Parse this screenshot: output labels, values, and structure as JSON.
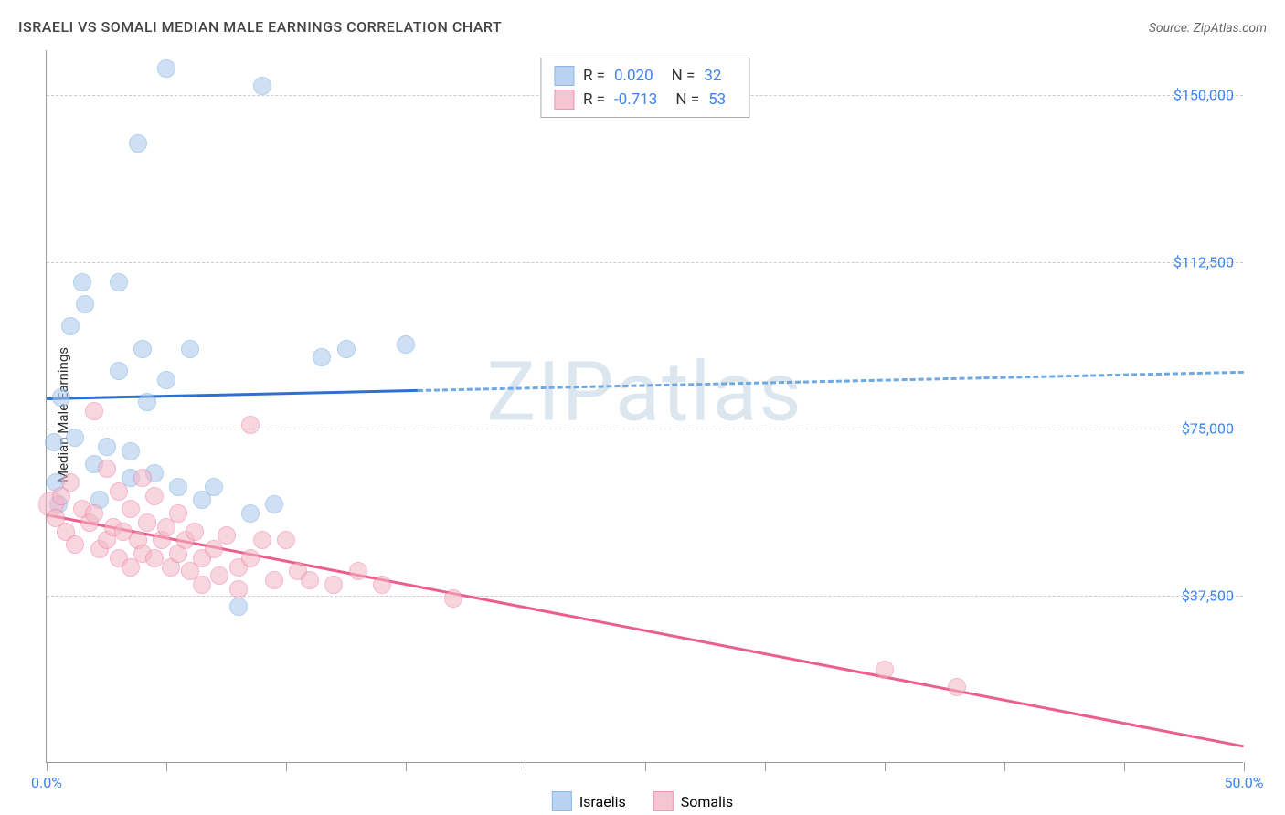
{
  "title": "ISRAELI VS SOMALI MEDIAN MALE EARNINGS CORRELATION CHART",
  "source": "Source: ZipAtlas.com",
  "y_axis_label": "Median Male Earnings",
  "watermark": "ZIPatlas",
  "x_axis": {
    "min": 0.0,
    "max": 50.0,
    "ticks": [
      0,
      5,
      10,
      15,
      20,
      25,
      30,
      35,
      40,
      45,
      50
    ],
    "labels": {
      "0": "0.0%",
      "50": "50.0%"
    }
  },
  "y_axis": {
    "min": 0,
    "max": 160000,
    "gridlines": [
      37500,
      75000,
      112500,
      150000
    ],
    "labels": {
      "37500": "$37,500",
      "75000": "$75,000",
      "112500": "$112,500",
      "150000": "$150,000"
    }
  },
  "series": [
    {
      "name": "Israelis",
      "fill_color": "#a9c8ec",
      "stroke_color": "#6fa8e2",
      "fill_opacity": 0.55,
      "marker_radius": 10,
      "R": "0.020",
      "N": "32",
      "trend": {
        "y_at_xmin": 82000,
        "y_at_xmax": 88000,
        "solid_until_x": 15.5,
        "solid_color": "#2f6fd0",
        "dash_color": "#6fa8e2",
        "width": 3
      },
      "points": [
        {
          "x": 0.3,
          "y": 72000
        },
        {
          "x": 0.4,
          "y": 63000
        },
        {
          "x": 0.5,
          "y": 58000
        },
        {
          "x": 0.6,
          "y": 82000
        },
        {
          "x": 1.0,
          "y": 98000
        },
        {
          "x": 1.2,
          "y": 73000
        },
        {
          "x": 1.5,
          "y": 108000
        },
        {
          "x": 1.6,
          "y": 103000
        },
        {
          "x": 2.0,
          "y": 67000
        },
        {
          "x": 2.2,
          "y": 59000
        },
        {
          "x": 2.5,
          "y": 71000
        },
        {
          "x": 3.0,
          "y": 108000
        },
        {
          "x": 3.0,
          "y": 88000
        },
        {
          "x": 3.5,
          "y": 70000
        },
        {
          "x": 3.5,
          "y": 64000
        },
        {
          "x": 3.8,
          "y": 139000
        },
        {
          "x": 4.0,
          "y": 93000
        },
        {
          "x": 4.2,
          "y": 81000
        },
        {
          "x": 4.5,
          "y": 65000
        },
        {
          "x": 5.0,
          "y": 156000
        },
        {
          "x": 5.0,
          "y": 86000
        },
        {
          "x": 5.5,
          "y": 62000
        },
        {
          "x": 6.0,
          "y": 93000
        },
        {
          "x": 6.5,
          "y": 59000
        },
        {
          "x": 7.0,
          "y": 62000
        },
        {
          "x": 8.0,
          "y": 35000
        },
        {
          "x": 8.5,
          "y": 56000
        },
        {
          "x": 9.0,
          "y": 152000
        },
        {
          "x": 9.5,
          "y": 58000
        },
        {
          "x": 11.5,
          "y": 91000
        },
        {
          "x": 12.5,
          "y": 93000
        },
        {
          "x": 15.0,
          "y": 94000
        }
      ]
    },
    {
      "name": "Somalis",
      "fill_color": "#f4b6c7",
      "stroke_color": "#ec7ba0",
      "fill_opacity": 0.55,
      "marker_radius": 10,
      "R": "-0.713",
      "N": "53",
      "trend": {
        "y_at_xmin": 56000,
        "y_at_xmax": 4000,
        "solid_until_x": 50,
        "solid_color": "#ec5f8d",
        "dash_color": "#ec5f8d",
        "width": 3
      },
      "points": [
        {
          "x": 0.2,
          "y": 58000,
          "r": 14
        },
        {
          "x": 0.4,
          "y": 55000
        },
        {
          "x": 0.6,
          "y": 60000
        },
        {
          "x": 0.8,
          "y": 52000
        },
        {
          "x": 1.0,
          "y": 63000
        },
        {
          "x": 1.2,
          "y": 49000
        },
        {
          "x": 1.5,
          "y": 57000
        },
        {
          "x": 1.8,
          "y": 54000
        },
        {
          "x": 2.0,
          "y": 79000
        },
        {
          "x": 2.0,
          "y": 56000
        },
        {
          "x": 2.2,
          "y": 48000
        },
        {
          "x": 2.5,
          "y": 66000
        },
        {
          "x": 2.5,
          "y": 50000
        },
        {
          "x": 2.8,
          "y": 53000
        },
        {
          "x": 3.0,
          "y": 61000
        },
        {
          "x": 3.0,
          "y": 46000
        },
        {
          "x": 3.2,
          "y": 52000
        },
        {
          "x": 3.5,
          "y": 57000
        },
        {
          "x": 3.5,
          "y": 44000
        },
        {
          "x": 3.8,
          "y": 50000
        },
        {
          "x": 4.0,
          "y": 64000
        },
        {
          "x": 4.0,
          "y": 47000
        },
        {
          "x": 4.2,
          "y": 54000
        },
        {
          "x": 4.5,
          "y": 60000
        },
        {
          "x": 4.5,
          "y": 46000
        },
        {
          "x": 4.8,
          "y": 50000
        },
        {
          "x": 5.0,
          "y": 53000
        },
        {
          "x": 5.2,
          "y": 44000
        },
        {
          "x": 5.5,
          "y": 56000
        },
        {
          "x": 5.5,
          "y": 47000
        },
        {
          "x": 5.8,
          "y": 50000
        },
        {
          "x": 6.0,
          "y": 43000
        },
        {
          "x": 6.2,
          "y": 52000
        },
        {
          "x": 6.5,
          "y": 46000
        },
        {
          "x": 6.5,
          "y": 40000
        },
        {
          "x": 7.0,
          "y": 48000
        },
        {
          "x": 7.2,
          "y": 42000
        },
        {
          "x": 7.5,
          "y": 51000
        },
        {
          "x": 8.0,
          "y": 44000
        },
        {
          "x": 8.0,
          "y": 39000
        },
        {
          "x": 8.5,
          "y": 76000
        },
        {
          "x": 8.5,
          "y": 46000
        },
        {
          "x": 9.0,
          "y": 50000
        },
        {
          "x": 9.5,
          "y": 41000
        },
        {
          "x": 10.0,
          "y": 50000
        },
        {
          "x": 10.5,
          "y": 43000
        },
        {
          "x": 11.0,
          "y": 41000
        },
        {
          "x": 12.0,
          "y": 40000
        },
        {
          "x": 13.0,
          "y": 43000
        },
        {
          "x": 14.0,
          "y": 40000
        },
        {
          "x": 17.0,
          "y": 37000
        },
        {
          "x": 35.0,
          "y": 21000
        },
        {
          "x": 38.0,
          "y": 17000
        }
      ]
    }
  ],
  "legend": {
    "items": [
      {
        "name": "Israelis"
      },
      {
        "name": "Somalis"
      }
    ]
  },
  "text_color": "#333",
  "value_color": "#3b82f6",
  "grid_color": "#cccccc",
  "background": "#ffffff"
}
